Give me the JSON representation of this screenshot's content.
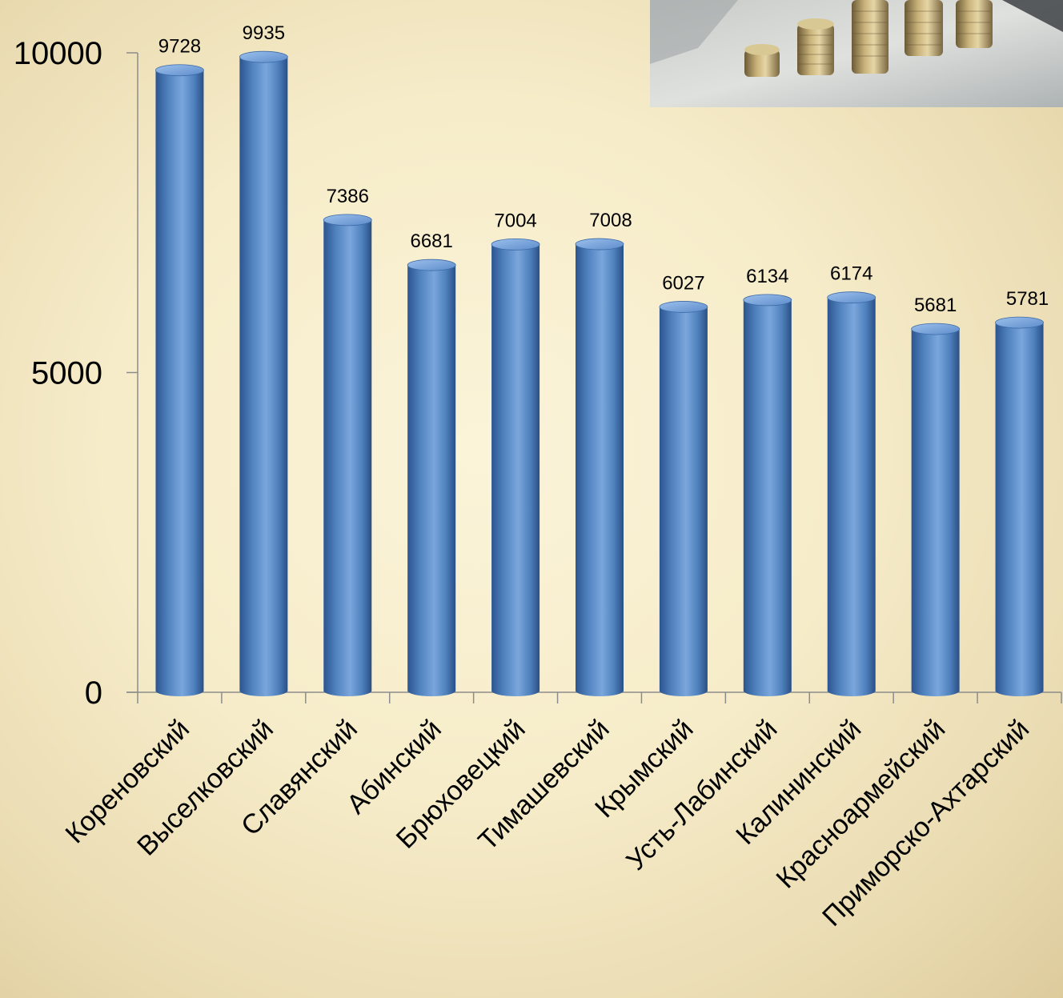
{
  "chart_data": {
    "type": "bar",
    "categories": [
      "Кореновский",
      "Выселковский",
      "Славянский",
      "Абинский",
      "Брюховецкий",
      "Тимашевский",
      "Крымский",
      "Усть-Лабинский",
      "Калининский",
      "Красноармейский",
      "Приморско-Ахтарский"
    ],
    "values": [
      9728,
      9935,
      7386,
      6681,
      7004,
      7008,
      6027,
      6134,
      6174,
      5681,
      5781
    ],
    "data_labels": [
      "9728",
      "9935",
      "7386",
      "6681",
      "7004",
      "7008",
      "6027",
      "6134",
      "6174",
      "5681",
      "5781"
    ],
    "ylim": [
      0,
      10000
    ],
    "yticks": [
      0,
      5000,
      10000
    ],
    "ytick_labels": [
      "0",
      "5000",
      "10000"
    ],
    "grid": false,
    "legend": "none",
    "bar_style": "3d-cylinder",
    "colors": {
      "bar": "#4f81bd",
      "bar_dark": "#2f5a93",
      "bar_light": "#8fb4e3",
      "axis": "#8c8c8c",
      "text": "#000000",
      "background": "#f6ecc9"
    }
  },
  "decoration": {
    "icon": "coin-stacks-photo"
  }
}
